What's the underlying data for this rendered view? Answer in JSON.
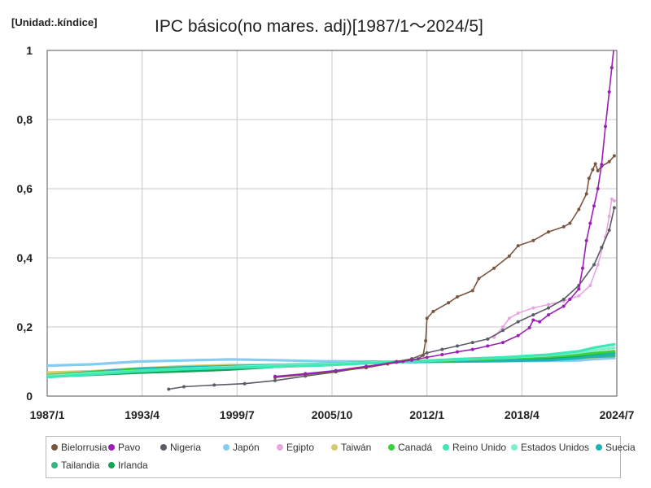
{
  "chart_data": {
    "type": "line",
    "title": "IPC básico(no mares. adj)[1987/1～2024/5]",
    "unit_label": "[Unidad:.kíndice]",
    "x_ticks": [
      "1987/1",
      "1993/4",
      "1999/7",
      "2005/10",
      "2012/1",
      "2018/4",
      "2024/7"
    ],
    "y_ticks": [
      "0",
      "0,2",
      "0,4",
      "0,6",
      "0,8",
      "1"
    ],
    "xlim": [
      "1987/1",
      "2024/7"
    ],
    "ylim": [
      0,
      1
    ],
    "grid": true,
    "legend_position": "bottom",
    "series": [
      {
        "name": "Bielorrusia",
        "color": "#7a5640",
        "points": [
          [
            "2002/1",
            0.054
          ],
          [
            "2004/1",
            0.062
          ],
          [
            "2006/1",
            0.072
          ],
          [
            "2008/1",
            0.082
          ],
          [
            "2009/6",
            0.093
          ],
          [
            "2010/6",
            0.1
          ],
          [
            "2011/6",
            0.108
          ],
          [
            "2011/10",
            0.118
          ],
          [
            "2011/12",
            0.16
          ],
          [
            "2012/1",
            0.225
          ],
          [
            "2012/6",
            0.245
          ],
          [
            "2013/6",
            0.27
          ],
          [
            "2014/1",
            0.287
          ],
          [
            "2015/1",
            0.305
          ],
          [
            "2015/6",
            0.34
          ],
          [
            "2016/6",
            0.37
          ],
          [
            "2017/6",
            0.405
          ],
          [
            "2018/1",
            0.435
          ],
          [
            "2019/1",
            0.45
          ],
          [
            "2020/1",
            0.475
          ],
          [
            "2021/1",
            0.49
          ],
          [
            "2021/6",
            0.5
          ],
          [
            "2022/1",
            0.54
          ],
          [
            "2022/7",
            0.585
          ],
          [
            "2022/9",
            0.63
          ],
          [
            "2022/12",
            0.655
          ],
          [
            "2023/2",
            0.672
          ],
          [
            "2023/4",
            0.652
          ],
          [
            "2023/7",
            0.665
          ],
          [
            "2024/1",
            0.678
          ],
          [
            "2024/5",
            0.695
          ]
        ]
      },
      {
        "name": "Pavo",
        "color": "#9b1fb5",
        "points": [
          [
            "2002/1",
            0.057
          ],
          [
            "2004/1",
            0.065
          ],
          [
            "2006/1",
            0.074
          ],
          [
            "2008/1",
            0.086
          ],
          [
            "2010/1",
            0.098
          ],
          [
            "2011/1",
            0.104
          ],
          [
            "2012/1",
            0.112
          ],
          [
            "2013/1",
            0.12
          ],
          [
            "2014/1",
            0.128
          ],
          [
            "2015/1",
            0.135
          ],
          [
            "2016/1",
            0.145
          ],
          [
            "2017/1",
            0.155
          ],
          [
            "2018/1",
            0.175
          ],
          [
            "2018/10",
            0.198
          ],
          [
            "2019/1",
            0.22
          ],
          [
            "2019/6",
            0.215
          ],
          [
            "2020/1",
            0.235
          ],
          [
            "2021/1",
            0.26
          ],
          [
            "2021/6",
            0.28
          ],
          [
            "2022/1",
            0.31
          ],
          [
            "2022/4",
            0.37
          ],
          [
            "2022/7",
            0.45
          ],
          [
            "2022/10",
            0.5
          ],
          [
            "2023/1",
            0.55
          ],
          [
            "2023/4",
            0.6
          ],
          [
            "2023/7",
            0.67
          ],
          [
            "2023/10",
            0.78
          ],
          [
            "2024/1",
            0.88
          ],
          [
            "2024/3",
            0.95
          ],
          [
            "2024/5",
            1.02
          ]
        ]
      },
      {
        "name": "Nigeria",
        "color": "#5c5c68",
        "points": [
          [
            "1995/1",
            0.02
          ],
          [
            "1996/1",
            0.027
          ],
          [
            "1998/1",
            0.032
          ],
          [
            "2000/1",
            0.036
          ],
          [
            "2002/1",
            0.045
          ],
          [
            "2004/1",
            0.058
          ],
          [
            "2006/1",
            0.07
          ],
          [
            "2008/1",
            0.084
          ],
          [
            "2010/1",
            0.1
          ],
          [
            "2011/1",
            0.108
          ],
          [
            "2012/1",
            0.125
          ],
          [
            "2013/1",
            0.135
          ],
          [
            "2014/1",
            0.145
          ],
          [
            "2015/1",
            0.155
          ],
          [
            "2016/1",
            0.165
          ],
          [
            "2017/1",
            0.19
          ],
          [
            "2018/1",
            0.215
          ],
          [
            "2019/1",
            0.235
          ],
          [
            "2020/1",
            0.255
          ],
          [
            "2021/1",
            0.28
          ],
          [
            "2022/1",
            0.32
          ],
          [
            "2023/1",
            0.38
          ],
          [
            "2023/7",
            0.43
          ],
          [
            "2024/1",
            0.48
          ],
          [
            "2024/5",
            0.545
          ]
        ]
      },
      {
        "name": "Japón",
        "color": "#86ccf0",
        "points": [
          [
            "1987/1",
            0.088
          ],
          [
            "1990/1",
            0.092
          ],
          [
            "1993/1",
            0.1
          ],
          [
            "1996/1",
            0.103
          ],
          [
            "1999/1",
            0.106
          ],
          [
            "2002/1",
            0.104
          ],
          [
            "2005/1",
            0.101
          ],
          [
            "2008/1",
            0.1
          ],
          [
            "2011/1",
            0.098
          ],
          [
            "2014/1",
            0.1
          ],
          [
            "2017/1",
            0.101
          ],
          [
            "2020/1",
            0.102
          ],
          [
            "2022/1",
            0.103
          ],
          [
            "2023/1",
            0.107
          ],
          [
            "2024/5",
            0.11
          ]
        ]
      },
      {
        "name": "Egipto",
        "color": "#e8a6e0",
        "points": [
          [
            "2016/6",
            0.17
          ],
          [
            "2017/1",
            0.2
          ],
          [
            "2017/6",
            0.225
          ],
          [
            "2018/1",
            0.24
          ],
          [
            "2019/1",
            0.255
          ],
          [
            "2020/1",
            0.265
          ],
          [
            "2021/1",
            0.275
          ],
          [
            "2022/1",
            0.29
          ],
          [
            "2022/10",
            0.32
          ],
          [
            "2023/4",
            0.38
          ],
          [
            "2023/10",
            0.46
          ],
          [
            "2024/1",
            0.52
          ],
          [
            "2024/3",
            0.57
          ],
          [
            "2024/5",
            0.565
          ]
        ]
      },
      {
        "name": "Taiwán",
        "color": "#d4cc6a",
        "points": [
          [
            "1987/1",
            0.068
          ],
          [
            "1990/1",
            0.072
          ],
          [
            "1993/1",
            0.08
          ],
          [
            "1996/1",
            0.086
          ],
          [
            "1999/1",
            0.09
          ],
          [
            "2002/1",
            0.09
          ],
          [
            "2005/1",
            0.092
          ],
          [
            "2008/1",
            0.096
          ],
          [
            "2011/1",
            0.1
          ],
          [
            "2014/1",
            0.104
          ],
          [
            "2017/1",
            0.106
          ],
          [
            "2020/1",
            0.108
          ],
          [
            "2022/1",
            0.11
          ],
          [
            "2024/5",
            0.116
          ]
        ]
      },
      {
        "name": "Canadá",
        "color": "#38d23c",
        "points": [
          [
            "1987/1",
            0.06
          ],
          [
            "1990/1",
            0.068
          ],
          [
            "1993/1",
            0.075
          ],
          [
            "1996/1",
            0.079
          ],
          [
            "1999/1",
            0.083
          ],
          [
            "2002/1",
            0.088
          ],
          [
            "2005/1",
            0.092
          ],
          [
            "2008/1",
            0.097
          ],
          [
            "2011/1",
            0.1
          ],
          [
            "2014/1",
            0.104
          ],
          [
            "2017/1",
            0.109
          ],
          [
            "2020/1",
            0.114
          ],
          [
            "2022/1",
            0.12
          ],
          [
            "2024/5",
            0.13
          ]
        ]
      },
      {
        "name": "Reino Unido",
        "color": "#3de8b4",
        "points": [
          [
            "1987/1",
            0.055
          ],
          [
            "1990/1",
            0.063
          ],
          [
            "1993/1",
            0.072
          ],
          [
            "1996/1",
            0.078
          ],
          [
            "1999/1",
            0.082
          ],
          [
            "2002/1",
            0.085
          ],
          [
            "2005/1",
            0.089
          ],
          [
            "2008/1",
            0.095
          ],
          [
            "2011/1",
            0.1
          ],
          [
            "2014/1",
            0.107
          ],
          [
            "2017/1",
            0.112
          ],
          [
            "2020/1",
            0.12
          ],
          [
            "2022/1",
            0.13
          ],
          [
            "2023/1",
            0.14
          ],
          [
            "2024/5",
            0.15
          ]
        ]
      },
      {
        "name": "Estados Unidos",
        "color": "#7eefc8",
        "points": [
          [
            "1987/1",
            0.058
          ],
          [
            "1990/1",
            0.066
          ],
          [
            "1993/1",
            0.073
          ],
          [
            "1996/1",
            0.079
          ],
          [
            "1999/1",
            0.084
          ],
          [
            "2002/1",
            0.088
          ],
          [
            "2005/1",
            0.092
          ],
          [
            "2008/1",
            0.097
          ],
          [
            "2011/1",
            0.1
          ],
          [
            "2014/1",
            0.106
          ],
          [
            "2017/1",
            0.111
          ],
          [
            "2020/1",
            0.118
          ],
          [
            "2022/1",
            0.126
          ],
          [
            "2024/5",
            0.14
          ]
        ]
      },
      {
        "name": "Suecia",
        "color": "#1eb4b4",
        "points": [
          [
            "1987/1",
            0.06
          ],
          [
            "1990/1",
            0.07
          ],
          [
            "1993/1",
            0.079
          ],
          [
            "1996/1",
            0.083
          ],
          [
            "1999/1",
            0.086
          ],
          [
            "2002/1",
            0.09
          ],
          [
            "2005/1",
            0.093
          ],
          [
            "2008/1",
            0.097
          ],
          [
            "2011/1",
            0.1
          ],
          [
            "2014/1",
            0.1
          ],
          [
            "2017/1",
            0.102
          ],
          [
            "2020/1",
            0.104
          ],
          [
            "2022/1",
            0.11
          ],
          [
            "2024/5",
            0.122
          ]
        ]
      },
      {
        "name": "Tailandia",
        "color": "#38b484",
        "points": [
          [
            "1987/1",
            0.058
          ],
          [
            "1990/1",
            0.065
          ],
          [
            "1993/1",
            0.072
          ],
          [
            "1996/1",
            0.078
          ],
          [
            "1999/1",
            0.084
          ],
          [
            "2002/1",
            0.086
          ],
          [
            "2005/1",
            0.089
          ],
          [
            "2008/1",
            0.095
          ],
          [
            "2011/1",
            0.1
          ],
          [
            "2014/1",
            0.105
          ],
          [
            "2017/1",
            0.106
          ],
          [
            "2020/1",
            0.108
          ],
          [
            "2022/1",
            0.112
          ],
          [
            "2024/5",
            0.116
          ]
        ]
      },
      {
        "name": "Irlanda",
        "color": "#17a457",
        "points": [
          [
            "1987/1",
            0.056
          ],
          [
            "1990/1",
            0.062
          ],
          [
            "1993/1",
            0.068
          ],
          [
            "1996/1",
            0.072
          ],
          [
            "1999/1",
            0.077
          ],
          [
            "2002/1",
            0.085
          ],
          [
            "2005/1",
            0.091
          ],
          [
            "2008/1",
            0.098
          ],
          [
            "2011/1",
            0.1
          ],
          [
            "2014/1",
            0.102
          ],
          [
            "2017/1",
            0.104
          ],
          [
            "2020/1",
            0.108
          ],
          [
            "2022/1",
            0.115
          ],
          [
            "2024/5",
            0.124
          ]
        ]
      }
    ]
  }
}
